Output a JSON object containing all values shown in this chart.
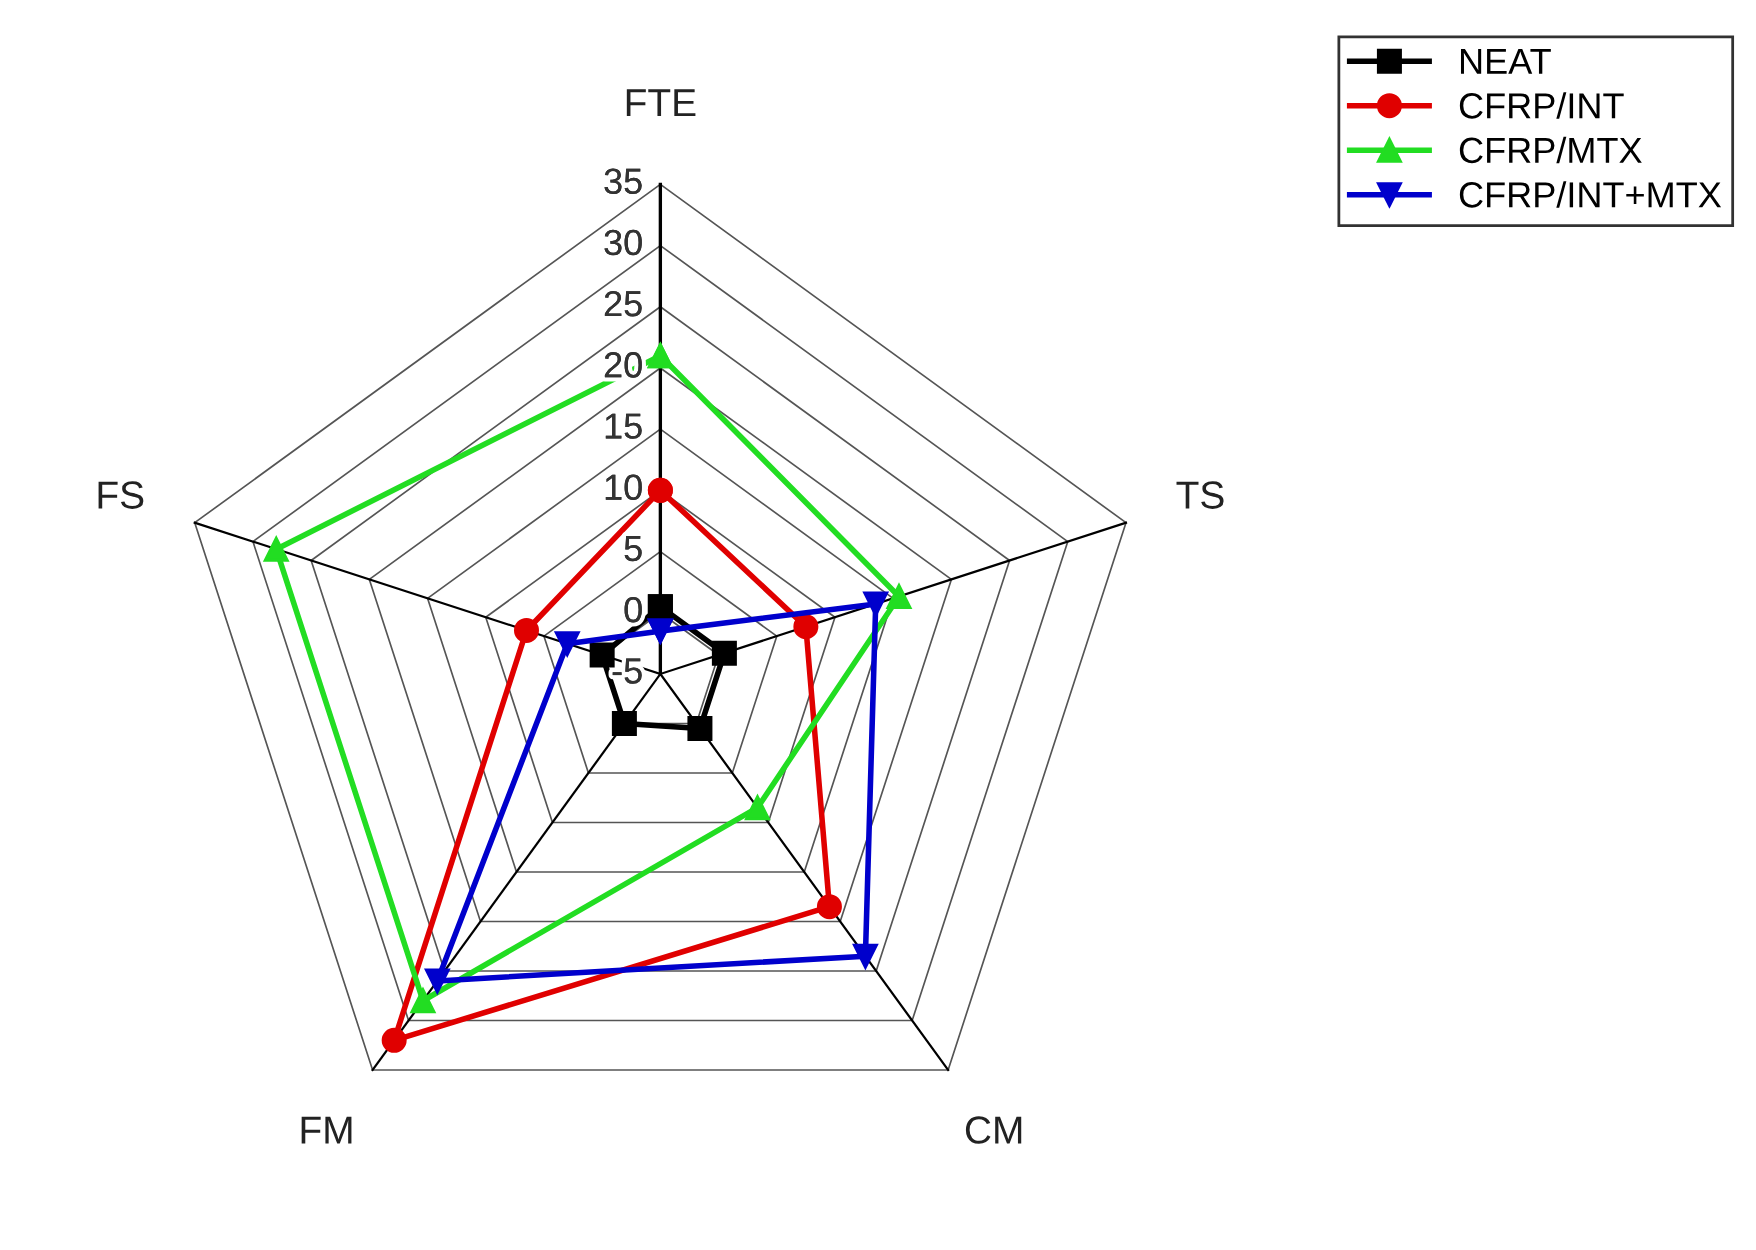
{
  "chart_data": {
    "type": "radar",
    "categories": [
      "FTE",
      "TS",
      "CM",
      "FM",
      "FS"
    ],
    "ylim": [
      -5,
      35
    ],
    "yticks": [
      -5,
      0,
      5,
      10,
      15,
      20,
      25,
      30,
      35
    ],
    "grid": true,
    "legend": "top right",
    "series": [
      {
        "name": "NEAT",
        "color": "#000000",
        "marker": "square",
        "values": [
          0.5,
          0.5,
          0.5,
          0,
          0
        ]
      },
      {
        "name": "CFRP/INT",
        "color": "#e00000",
        "marker": "circle",
        "values": [
          10,
          7.5,
          18.5,
          32,
          6.5
        ]
      },
      {
        "name": "CFRP/MTX",
        "color": "#22dd22",
        "marker": "triangle",
        "values": [
          21,
          15.5,
          8.5,
          28,
          28
        ]
      },
      {
        "name": "CFRP/INT+MTX",
        "color": "#0000cc",
        "marker": "triangle_down",
        "values": [
          -1.5,
          13.5,
          23.5,
          26,
          3
        ]
      }
    ]
  }
}
